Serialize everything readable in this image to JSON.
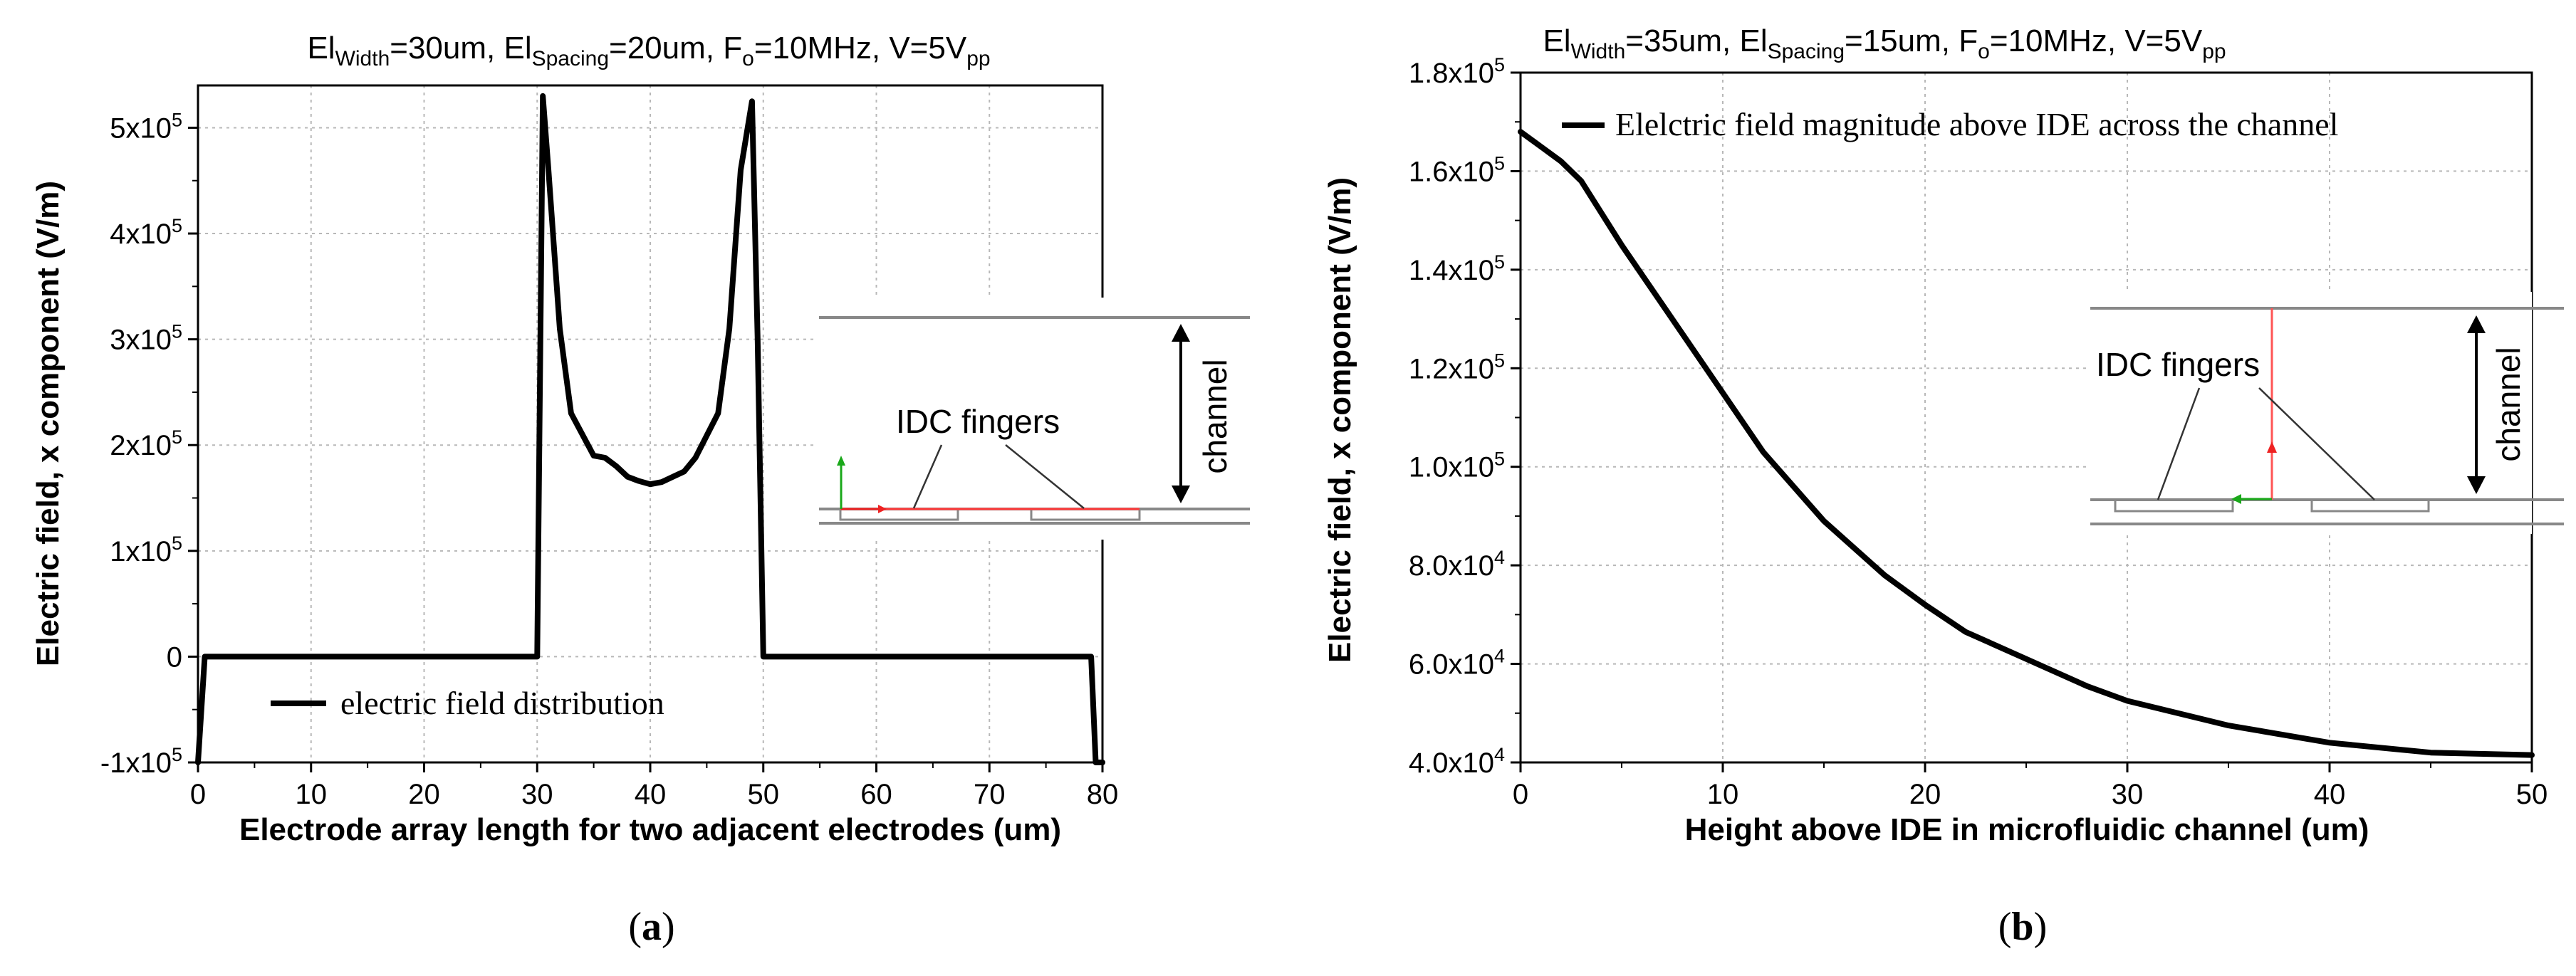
{
  "chart_data": [
    {
      "type": "line",
      "caption": "a",
      "title": {
        "w_main": "El",
        "w_sub": "Width",
        "w_val": "=30um, ",
        "s_main": "El",
        "s_sub": "Spacing",
        "s_val": "=20um, ",
        "f_main": "F",
        "f_sub": "o",
        "f_val": "=10MHz, V=5V",
        "v_sub": "pp"
      },
      "xlabel": "Electrode array length for two adjacent electrodes (um)",
      "ylabel": "Electric field, x component (V/m)",
      "xlim": [
        0,
        80
      ],
      "ylim": [
        -100000,
        540000
      ],
      "xticks": [
        {
          "value": 0,
          "label": "0"
        },
        {
          "value": 10,
          "label": "10"
        },
        {
          "value": 20,
          "label": "20"
        },
        {
          "value": 30,
          "label": "30"
        },
        {
          "value": 40,
          "label": "40"
        },
        {
          "value": 50,
          "label": "50"
        },
        {
          "value": 60,
          "label": "60"
        },
        {
          "value": 70,
          "label": "70"
        },
        {
          "value": 80,
          "label": "80"
        }
      ],
      "yticks": [
        {
          "value": -100000,
          "label": "-1x10",
          "exp": "5"
        },
        {
          "value": 0,
          "label": "0",
          "exp": ""
        },
        {
          "value": 100000,
          "label": "1x10",
          "exp": "5"
        },
        {
          "value": 200000,
          "label": "2x10",
          "exp": "5"
        },
        {
          "value": 300000,
          "label": "3x10",
          "exp": "5"
        },
        {
          "value": 400000,
          "label": "4x10",
          "exp": "5"
        },
        {
          "value": 500000,
          "label": "5x10",
          "exp": "5"
        }
      ],
      "series": [
        {
          "name": "electric field distribution",
          "x": [
            0,
            0.6,
            1,
            1.5,
            30,
            30.5,
            31,
            32,
            33,
            35,
            36,
            37,
            38,
            39,
            40,
            41,
            42,
            43,
            44,
            46,
            47,
            48,
            49,
            49.5,
            50,
            78.5,
            79,
            79.4,
            80
          ],
          "y": [
            -100000,
            0,
            0,
            0,
            0,
            530000,
            460000,
            310000,
            230000,
            190000,
            188000,
            180000,
            170000,
            166000,
            163000,
            165000,
            170000,
            175000,
            188000,
            230000,
            310000,
            460000,
            525000,
            300000,
            0,
            0,
            0,
            -100000,
            -100000
          ]
        }
      ],
      "inset": {
        "label": "IDC fingers",
        "channel": "channel"
      }
    },
    {
      "type": "line",
      "caption": "b",
      "title": {
        "w_main": "El",
        "w_sub": "Width",
        "w_val": "=35um, ",
        "s_main": "El",
        "s_sub": "Spacing",
        "s_val": "=15um, ",
        "f_main": "F",
        "f_sub": "o",
        "f_val": "=10MHz, V=5V",
        "v_sub": "pp"
      },
      "xlabel": "Height above IDE in microfluidic channel (um)",
      "ylabel": "Electric field, x component (V/m)",
      "xlim": [
        0,
        50
      ],
      "ylim": [
        40000,
        180000
      ],
      "xticks": [
        {
          "value": 0,
          "label": "0"
        },
        {
          "value": 10,
          "label": "10"
        },
        {
          "value": 20,
          "label": "20"
        },
        {
          "value": 30,
          "label": "30"
        },
        {
          "value": 40,
          "label": "40"
        },
        {
          "value": 50,
          "label": "50"
        }
      ],
      "yticks": [
        {
          "value": 40000,
          "label": "4.0x10",
          "exp": "4"
        },
        {
          "value": 60000,
          "label": "6.0x10",
          "exp": "4"
        },
        {
          "value": 80000,
          "label": "8.0x10",
          "exp": "4"
        },
        {
          "value": 100000,
          "label": "1.0x10",
          "exp": "5"
        },
        {
          "value": 120000,
          "label": "1.2x10",
          "exp": "5"
        },
        {
          "value": 140000,
          "label": "1.4x10",
          "exp": "5"
        },
        {
          "value": 160000,
          "label": "1.6x10",
          "exp": "5"
        },
        {
          "value": 180000,
          "label": "1.8x10",
          "exp": "5"
        }
      ],
      "series": [
        {
          "name": "Elelctric field magnitude above IDE across the channel",
          "x": [
            0,
            1,
            2,
            3,
            5,
            7,
            10,
            12,
            15,
            18,
            20,
            22,
            25,
            28,
            30,
            35,
            40,
            45,
            50
          ],
          "y": [
            168000,
            165000,
            162000,
            158000,
            145000,
            133000,
            115000,
            103000,
            89000,
            78000,
            72000,
            66500,
            61000,
            55500,
            52500,
            47500,
            44000,
            42000,
            41500
          ]
        }
      ],
      "inset": {
        "label": "IDC fingers",
        "channel": "channel"
      }
    }
  ]
}
